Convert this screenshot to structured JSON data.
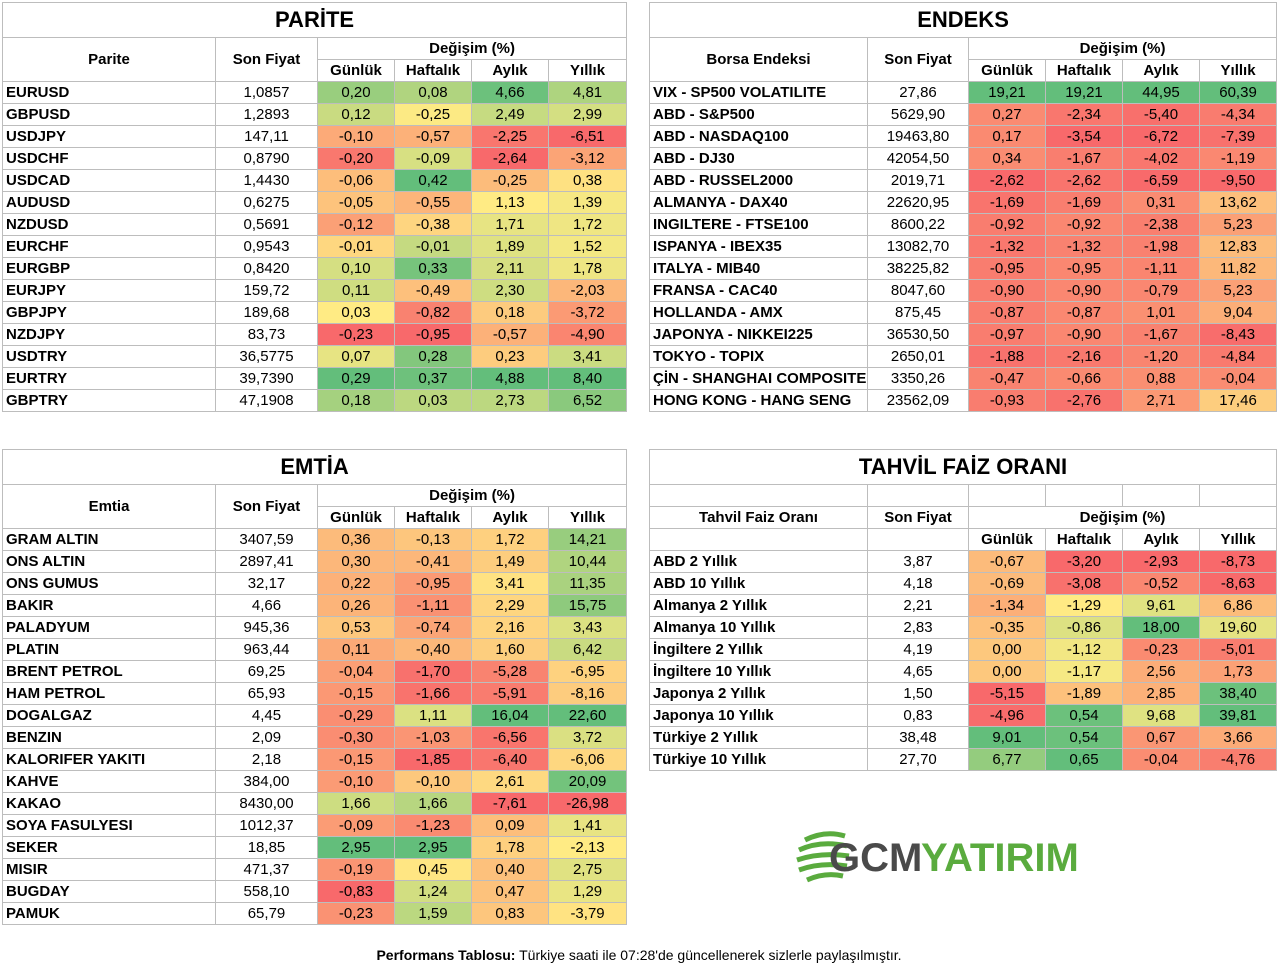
{
  "columns": {
    "son_fiyat": "Son Fiyat",
    "degisim": "Değişim (%)",
    "gunluk": "Günlük",
    "haftalik": "Haftalık",
    "aylik": "Aylık",
    "yillik": "Yıllık"
  },
  "colors": {
    "scale_low": "#f8696b",
    "scale_mid": "#ffeb84",
    "scale_high": "#63be7b"
  },
  "parite": {
    "title": "PARİTE",
    "name_header": "Parite",
    "rows": [
      {
        "name": "EURUSD",
        "price": "1,0857",
        "d": "0,20",
        "w": "0,08",
        "m": "4,66",
        "y": "4,81"
      },
      {
        "name": "GBPUSD",
        "price": "1,2893",
        "d": "0,12",
        "w": "-0,25",
        "m": "2,49",
        "y": "2,99"
      },
      {
        "name": "USDJPY",
        "price": "147,11",
        "d": "-0,10",
        "w": "-0,57",
        "m": "-2,25",
        "y": "-6,51"
      },
      {
        "name": "USDCHF",
        "price": "0,8790",
        "d": "-0,20",
        "w": "-0,09",
        "m": "-2,64",
        "y": "-3,12"
      },
      {
        "name": "USDCAD",
        "price": "1,4430",
        "d": "-0,06",
        "w": "0,42",
        "m": "-0,25",
        "y": "0,38"
      },
      {
        "name": "AUDUSD",
        "price": "0,6275",
        "d": "-0,05",
        "w": "-0,55",
        "m": "1,13",
        "y": "1,39"
      },
      {
        "name": "NZDUSD",
        "price": "0,5691",
        "d": "-0,12",
        "w": "-0,38",
        "m": "1,71",
        "y": "1,72"
      },
      {
        "name": "EURCHF",
        "price": "0,9543",
        "d": "-0,01",
        "w": "-0,01",
        "m": "1,89",
        "y": "1,52"
      },
      {
        "name": "EURGBP",
        "price": "0,8420",
        "d": "0,10",
        "w": "0,33",
        "m": "2,11",
        "y": "1,78"
      },
      {
        "name": "EURJPY",
        "price": "159,72",
        "d": "0,11",
        "w": "-0,49",
        "m": "2,30",
        "y": "-2,03"
      },
      {
        "name": "GBPJPY",
        "price": "189,68",
        "d": "0,03",
        "w": "-0,82",
        "m": "0,18",
        "y": "-3,72"
      },
      {
        "name": "NZDJPY",
        "price": "83,73",
        "d": "-0,23",
        "w": "-0,95",
        "m": "-0,57",
        "y": "-4,90"
      },
      {
        "name": "USDTRY",
        "price": "36,5775",
        "d": "0,07",
        "w": "0,28",
        "m": "0,23",
        "y": "3,41"
      },
      {
        "name": "EURTRY",
        "price": "39,7390",
        "d": "0,29",
        "w": "0,37",
        "m": "4,88",
        "y": "8,40"
      },
      {
        "name": "GBPTRY",
        "price": "47,1908",
        "d": "0,18",
        "w": "0,03",
        "m": "2,73",
        "y": "6,52"
      }
    ]
  },
  "endeks": {
    "title": "ENDEKS",
    "name_header": "Borsa Endeksi",
    "rows": [
      {
        "name": "VIX  - SP500 VOLATILITE",
        "price": "27,86",
        "d": "19,21",
        "w": "19,21",
        "m": "44,95",
        "y": "60,39"
      },
      {
        "name": "ABD - S&P500",
        "price": "5629,90",
        "d": "0,27",
        "w": "-2,34",
        "m": "-5,40",
        "y": "-4,34"
      },
      {
        "name": "ABD - NASDAQ100",
        "price": "19463,80",
        "d": "0,17",
        "w": "-3,54",
        "m": "-6,72",
        "y": "-7,39"
      },
      {
        "name": "ABD - DJ30",
        "price": "42054,50",
        "d": "0,34",
        "w": "-1,67",
        "m": "-4,02",
        "y": "-1,19"
      },
      {
        "name": "ABD - RUSSEL2000",
        "price": "2019,71",
        "d": "-2,62",
        "w": "-2,62",
        "m": "-6,59",
        "y": "-9,50"
      },
      {
        "name": "ALMANYA - DAX40",
        "price": "22620,95",
        "d": "-1,69",
        "w": "-1,69",
        "m": "0,31",
        "y": "13,62"
      },
      {
        "name": "INGILTERE - FTSE100",
        "price": "8600,22",
        "d": "-0,92",
        "w": "-0,92",
        "m": "-2,38",
        "y": "5,23"
      },
      {
        "name": "ISPANYA - IBEX35",
        "price": "13082,70",
        "d": "-1,32",
        "w": "-1,32",
        "m": "-1,98",
        "y": "12,83"
      },
      {
        "name": "ITALYA - MIB40",
        "price": "38225,82",
        "d": "-0,95",
        "w": "-0,95",
        "m": "-1,11",
        "y": "11,82"
      },
      {
        "name": "FRANSA - CAC40",
        "price": "8047,60",
        "d": "-0,90",
        "w": "-0,90",
        "m": "-0,79",
        "y": "5,23"
      },
      {
        "name": "HOLLANDA - AMX",
        "price": "875,45",
        "d": "-0,87",
        "w": "-0,87",
        "m": "1,01",
        "y": "9,04"
      },
      {
        "name": "JAPONYA - NIKKEI225",
        "price": "36530,50",
        "d": "-0,97",
        "w": "-0,90",
        "m": "-1,67",
        "y": "-8,43"
      },
      {
        "name": "TOKYO - TOPIX",
        "price": "2650,01",
        "d": "-1,88",
        "w": "-2,16",
        "m": "-1,20",
        "y": "-4,84"
      },
      {
        "name": "ÇİN - SHANGHAI COMPOSITE",
        "price": "3350,26",
        "d": "-0,47",
        "w": "-0,66",
        "m": "0,88",
        "y": "-0,04"
      },
      {
        "name": "HONG KONG - HANG SENG",
        "price": "23562,09",
        "d": "-0,93",
        "w": "-2,76",
        "m": "2,71",
        "y": "17,46"
      }
    ]
  },
  "emtia": {
    "title": "EMTİA",
    "name_header": "Emtia",
    "rows": [
      {
        "name": "GRAM ALTIN",
        "price": "3407,59",
        "d": "0,36",
        "w": "-0,13",
        "m": "1,72",
        "y": "14,21"
      },
      {
        "name": "ONS ALTIN",
        "price": "2897,41",
        "d": "0,30",
        "w": "-0,41",
        "m": "1,49",
        "y": "10,44"
      },
      {
        "name": "ONS GUMUS",
        "price": "32,17",
        "d": "0,22",
        "w": "-0,95",
        "m": "3,41",
        "y": "11,35"
      },
      {
        "name": "BAKIR",
        "price": "4,66",
        "d": "0,26",
        "w": "-1,11",
        "m": "2,29",
        "y": "15,75"
      },
      {
        "name": "PALADYUM",
        "price": "945,36",
        "d": "0,53",
        "w": "-0,74",
        "m": "2,16",
        "y": "3,43"
      },
      {
        "name": "PLATIN",
        "price": "963,44",
        "d": "0,11",
        "w": "-0,40",
        "m": "1,60",
        "y": "6,42"
      },
      {
        "name": "BRENT PETROL",
        "price": "69,25",
        "d": "-0,04",
        "w": "-1,70",
        "m": "-5,28",
        "y": "-6,95"
      },
      {
        "name": "HAM PETROL",
        "price": "65,93",
        "d": "-0,15",
        "w": "-1,66",
        "m": "-5,91",
        "y": "-8,16"
      },
      {
        "name": "DOGALGAZ",
        "price": "4,45",
        "d": "-0,29",
        "w": "1,11",
        "m": "16,04",
        "y": "22,60"
      },
      {
        "name": "BENZIN",
        "price": "2,09",
        "d": "-0,30",
        "w": "-1,03",
        "m": "-6,56",
        "y": "3,72"
      },
      {
        "name": "KALORIFER YAKITI",
        "price": "2,18",
        "d": "-0,15",
        "w": "-1,85",
        "m": "-6,40",
        "y": "-6,06"
      },
      {
        "name": "KAHVE",
        "price": "384,00",
        "d": "-0,10",
        "w": "-0,10",
        "m": "2,61",
        "y": "20,09"
      },
      {
        "name": "KAKAO",
        "price": "8430,00",
        "d": "1,66",
        "w": "1,66",
        "m": "-7,61",
        "y": "-26,98"
      },
      {
        "name": "SOYA FASULYESI",
        "price": "1012,37",
        "d": "-0,09",
        "w": "-1,23",
        "m": "0,09",
        "y": "1,41"
      },
      {
        "name": "SEKER",
        "price": "18,85",
        "d": "2,95",
        "w": "2,95",
        "m": "1,78",
        "y": "-2,13"
      },
      {
        "name": "MISIR",
        "price": "471,37",
        "d": "-0,19",
        "w": "0,45",
        "m": "0,40",
        "y": "2,75"
      },
      {
        "name": "BUGDAY",
        "price": "558,10",
        "d": "-0,83",
        "w": "1,24",
        "m": "0,47",
        "y": "1,29"
      },
      {
        "name": "PAMUK",
        "price": "65,79",
        "d": "-0,23",
        "w": "1,59",
        "m": "0,83",
        "y": "-3,79"
      }
    ]
  },
  "tahvil": {
    "title": "TAHVİL FAİZ ORANI",
    "name_header": "Tahvil Faiz Oranı",
    "rows": [
      {
        "name": "ABD 2 Yıllık",
        "price": "3,87",
        "d": "-0,67",
        "w": "-3,20",
        "m": "-2,93",
        "y": "-8,73"
      },
      {
        "name": "ABD 10 Yıllık",
        "price": "4,18",
        "d": "-0,69",
        "w": "-3,08",
        "m": "-0,52",
        "y": "-8,63"
      },
      {
        "name": "Almanya 2 Yıllık",
        "price": "2,21",
        "d": "-1,34",
        "w": "-1,29",
        "m": "9,61",
        "y": "6,86"
      },
      {
        "name": "Almanya 10 Yıllık",
        "price": "2,83",
        "d": "-0,35",
        "w": "-0,86",
        "m": "18,00",
        "y": "19,60"
      },
      {
        "name": "İngiltere 2 Yıllık",
        "price": "4,19",
        "d": "0,00",
        "w": "-1,12",
        "m": "-0,23",
        "y": "-5,01"
      },
      {
        "name": "İngiltere 10 Yıllık",
        "price": "4,65",
        "d": "0,00",
        "w": "-1,17",
        "m": "2,56",
        "y": "1,73"
      },
      {
        "name": "Japonya 2 Yıllık",
        "price": "1,50",
        "d": "-5,15",
        "w": "-1,89",
        "m": "2,85",
        "y": "38,40"
      },
      {
        "name": "Japonya 10 Yıllık",
        "price": "0,83",
        "d": "-4,96",
        "w": "0,54",
        "m": "9,68",
        "y": "39,81"
      },
      {
        "name": "Türkiye 2 Yıllık",
        "price": "38,48",
        "d": "9,01",
        "w": "0,54",
        "m": "0,67",
        "y": "3,66"
      },
      {
        "name": "Türkiye 10 Yıllık",
        "price": "27,70",
        "d": "6,77",
        "w": "0,65",
        "m": "-0,04",
        "y": "-4,76"
      }
    ]
  },
  "logo": {
    "text_gcm": "GCM",
    "text_yatirim": "YATIRIM",
    "icon": "globe-stripes-icon",
    "gcm_color": "#4a4a4a",
    "yatirim_color": "#5aab3e"
  },
  "footer": {
    "bold": "Performans Tablosu:",
    "text": " Türkiye saati ile 07:28'de güncellenerek sizlerle paylaşılmıştır."
  }
}
